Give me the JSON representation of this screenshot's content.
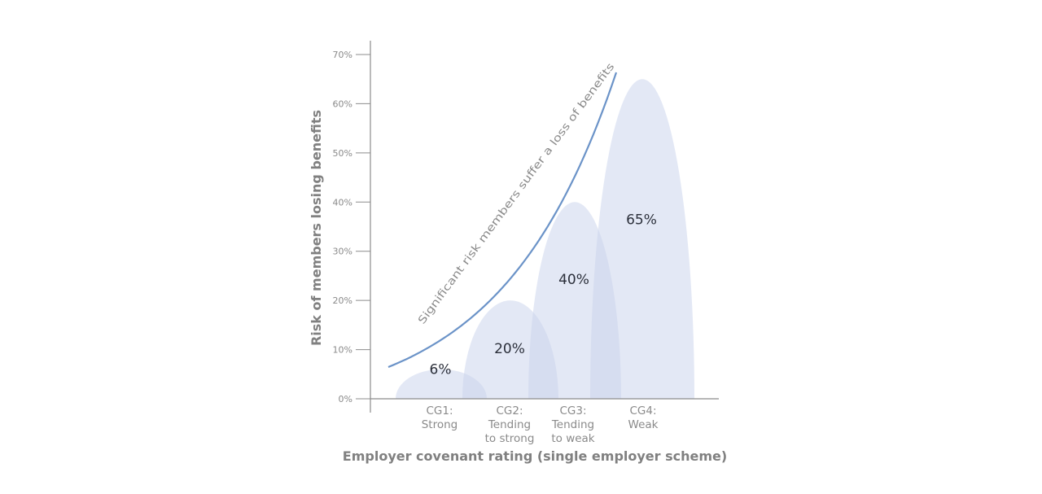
{
  "chart_data": {
    "type": "area",
    "xlabel": "Employer covenant rating (single employer scheme)",
    "ylabel": "Risk of members losing benefits",
    "ylim": [
      0,
      70
    ],
    "y_ticks": [
      "0%",
      "10%",
      "20%",
      "30%",
      "40%",
      "50%",
      "60%",
      "70%"
    ],
    "categories": [
      [
        "CG1:",
        "Strong"
      ],
      [
        "CG2:",
        "Tending",
        "to strong"
      ],
      [
        "CG3:",
        "Tending",
        "to weak"
      ],
      [
        "CG4:",
        "Weak"
      ]
    ],
    "values": [
      6,
      20,
      40,
      65
    ],
    "value_labels": [
      "6%",
      "20%",
      "40%",
      "65%"
    ],
    "curve_label": "Significant risk members suffer a loss of benefits",
    "colors": {
      "hump": "#c9d3ec",
      "curve": "#6b93c8",
      "axis": "#8c8c8c"
    }
  }
}
